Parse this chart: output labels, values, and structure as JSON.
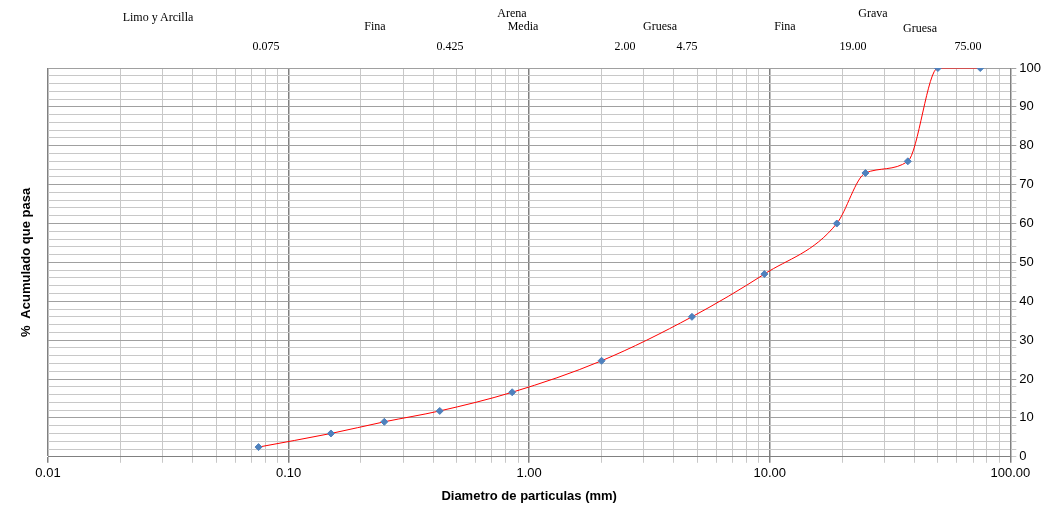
{
  "chart_data": {
    "type": "line",
    "xlabel": "Diametro de particulas (mm)",
    "ylabel": "%  Acumulado que pasa",
    "x": [
      0.075,
      0.15,
      0.25,
      0.425,
      0.85,
      2.0,
      4.75,
      9.5,
      19,
      25,
      37.5,
      50,
      75
    ],
    "series": [
      {
        "color": "#ff0000",
        "values": [
          2.5,
          6,
          9,
          11.8,
          16.6,
          24.7,
          36,
          47,
          60,
          73,
          76,
          100,
          100
        ]
      },
      {
        "type": "scatter",
        "marker": "diamond",
        "color": "#4f81bd",
        "values": [
          2.5,
          6,
          9,
          11.8,
          16.6,
          24.7,
          36,
          47,
          60,
          73,
          76,
          100,
          100
        ]
      }
    ],
    "log": "x",
    "grid": true,
    "legend": false,
    "xlim": [
      0.01,
      100
    ],
    "ylim": [
      0,
      100
    ],
    "xticks": [
      {
        "value": 0.01,
        "label": "0.01"
      },
      {
        "value": 0.02,
        "label": null
      },
      {
        "value": 0.03,
        "label": null
      },
      {
        "value": 0.04,
        "label": null
      },
      {
        "value": 0.05,
        "label": null
      },
      {
        "value": 0.06,
        "label": null
      },
      {
        "value": 0.07,
        "label": null
      },
      {
        "value": 0.08,
        "label": null
      },
      {
        "value": 0.09,
        "label": null
      },
      {
        "value": 0.1,
        "label": "0.10"
      },
      {
        "value": 0.2,
        "label": null
      },
      {
        "value": 0.3,
        "label": null
      },
      {
        "value": 0.4,
        "label": null
      },
      {
        "value": 0.5,
        "label": null
      },
      {
        "value": 0.6,
        "label": null
      },
      {
        "value": 0.7,
        "label": null
      },
      {
        "value": 0.8,
        "label": null
      },
      {
        "value": 0.9,
        "label": null
      },
      {
        "value": 1,
        "label": "1.00"
      },
      {
        "value": 2,
        "label": null
      },
      {
        "value": 3,
        "label": null
      },
      {
        "value": 4,
        "label": null
      },
      {
        "value": 5,
        "label": null
      },
      {
        "value": 6,
        "label": null
      },
      {
        "value": 7,
        "label": null
      },
      {
        "value": 8,
        "label": null
      },
      {
        "value": 9,
        "label": null
      },
      {
        "value": 10,
        "label": "10.00"
      },
      {
        "value": 20,
        "label": null
      },
      {
        "value": 30,
        "label": null
      },
      {
        "value": 40,
        "label": null
      },
      {
        "value": 50,
        "label": null
      },
      {
        "value": 60,
        "label": null
      },
      {
        "value": 70,
        "label": null
      },
      {
        "value": 80,
        "label": null
      },
      {
        "value": 90,
        "label": null
      },
      {
        "value": 100,
        "label": "100.00"
      }
    ],
    "yticks": [
      0,
      {
        "value": 2,
        "label": null
      },
      {
        "value": 4,
        "label": null
      },
      {
        "value": 6,
        "label": null
      },
      {
        "value": 8,
        "label": null
      },
      10,
      {
        "value": 12,
        "label": null
      },
      {
        "value": 14,
        "label": null
      },
      {
        "value": 16,
        "label": null
      },
      {
        "value": 18,
        "label": null
      },
      20,
      {
        "value": 22,
        "label": null
      },
      {
        "value": 24,
        "label": null
      },
      {
        "value": 26,
        "label": null
      },
      {
        "value": 28,
        "label": null
      },
      30,
      {
        "value": 32,
        "label": null
      },
      {
        "value": 34,
        "label": null
      },
      {
        "value": 36,
        "label": null
      },
      {
        "value": 38,
        "label": null
      },
      40,
      {
        "value": 42,
        "label": null
      },
      {
        "value": 44,
        "label": null
      },
      {
        "value": 46,
        "label": null
      },
      {
        "value": 48,
        "label": null
      },
      50,
      {
        "value": 52,
        "label": null
      },
      {
        "value": 54,
        "label": null
      },
      {
        "value": 56,
        "label": null
      },
      {
        "value": 58,
        "label": null
      },
      60,
      {
        "value": 62,
        "label": null
      },
      {
        "value": 64,
        "label": null
      },
      {
        "value": 66,
        "label": null
      },
      {
        "value": 68,
        "label": null
      },
      70,
      {
        "value": 72,
        "label": null
      },
      {
        "value": 74,
        "label": null
      },
      {
        "value": 76,
        "label": null
      },
      {
        "value": 78,
        "label": null
      },
      80,
      {
        "value": 82,
        "label": null
      },
      {
        "value": 84,
        "label": null
      },
      {
        "value": 86,
        "label": null
      },
      {
        "value": 88,
        "label": null
      },
      90,
      {
        "value": 92,
        "label": null
      },
      {
        "value": 94,
        "label": null
      },
      {
        "value": 96,
        "label": null
      },
      {
        "value": 98,
        "label": null
      },
      100
    ],
    "annotations": [
      "Limo y Arcilla",
      "Fina",
      "Arena",
      "Media",
      "Gruesa",
      "Fina",
      "Grava",
      "Gruesa",
      "0.075",
      "0.425",
      "2.00",
      "4.75",
      "19.00",
      "75.00"
    ]
  }
}
